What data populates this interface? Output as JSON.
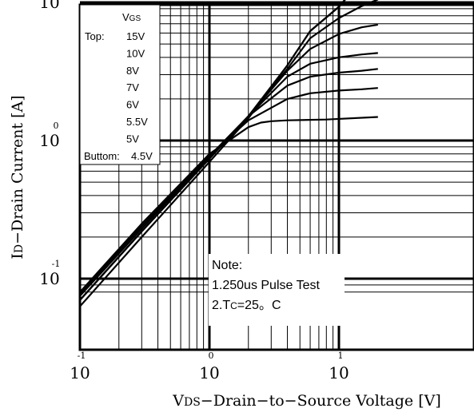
{
  "chart_data": {
    "type": "line",
    "x_scale": "log",
    "y_scale": "log",
    "xlim": [
      0.1,
      20
    ],
    "ylim": [
      0.07,
      20
    ],
    "x_ticks": [
      {
        "value": 0.1,
        "base": "10",
        "exp": "-1"
      },
      {
        "value": 1,
        "base": "10",
        "exp": "0"
      },
      {
        "value": 10,
        "base": "10",
        "exp": "1"
      }
    ],
    "y_ticks": [
      {
        "value": 0.1,
        "base": "10",
        "exp": "-1"
      },
      {
        "value": 1,
        "base": "10",
        "exp": "0"
      },
      {
        "value": 10,
        "base": "10",
        "exp": "1"
      }
    ],
    "xlabel": {
      "prefix": "V",
      "sub": "DS",
      "text": "−Drain−to−Source Voltage [V]"
    },
    "ylabel": {
      "prefix": "I",
      "sub": "D",
      "text": "−Drain Current [A]"
    },
    "grid": true,
    "legend": {
      "header": {
        "prefix": "V",
        "sub": "GS"
      },
      "top_label": "Top:",
      "bottom_label": "Buttom:",
      "entries": [
        "15V",
        "10V",
        "8V",
        "7V",
        "6V",
        "5.5V",
        "5V",
        "4.5V"
      ],
      "placement": "top-left"
    },
    "note": {
      "title": "Note:",
      "line1": "1.250us Pulse Test",
      "line2_prefix": "2.T",
      "line2_sub": "C",
      "line2_suffix": "=25。C"
    },
    "series": [
      {
        "name": "15V",
        "x": [
          0.1,
          0.3,
          1,
          2,
          4,
          6,
          10,
          15,
          20
        ],
        "y": [
          0.07,
          0.22,
          0.74,
          1.5,
          3.5,
          6.2,
          9.3,
          14.5,
          20
        ]
      },
      {
        "name": "10V",
        "x": [
          0.1,
          0.3,
          1,
          2,
          4,
          6,
          10,
          15,
          20
        ],
        "y": [
          0.07,
          0.22,
          0.74,
          1.5,
          3.3,
          5.5,
          7.7,
          9.4,
          10.5
        ]
      },
      {
        "name": "8V",
        "x": [
          0.1,
          0.3,
          1,
          2,
          4,
          6,
          10,
          15,
          20
        ],
        "y": [
          0.07,
          0.22,
          0.74,
          1.5,
          3.2,
          4.6,
          5.9,
          6.6,
          6.9
        ]
      },
      {
        "name": "7V",
        "x": [
          0.1,
          0.3,
          1,
          2,
          4,
          6,
          10,
          15,
          20
        ],
        "y": [
          0.07,
          0.22,
          0.74,
          1.5,
          2.9,
          3.6,
          4.0,
          4.2,
          4.3
        ]
      },
      {
        "name": "6V",
        "x": [
          0.1,
          0.3,
          1,
          2,
          4,
          6,
          10,
          15,
          20
        ],
        "y": [
          0.075,
          0.23,
          0.77,
          1.5,
          2.5,
          2.9,
          3.1,
          3.2,
          3.3
        ]
      },
      {
        "name": "5.5V",
        "x": [
          0.1,
          0.3,
          1,
          2,
          4,
          6,
          10,
          15,
          20
        ],
        "y": [
          0.078,
          0.24,
          0.78,
          1.4,
          2.0,
          2.2,
          2.3,
          2.35,
          2.4
        ]
      },
      {
        "name": "5V",
        "x": [
          0.1,
          0.3,
          1,
          2,
          2.5,
          3,
          4,
          8,
          20
        ],
        "y": [
          0.08,
          0.25,
          0.8,
          1.25,
          1.35,
          1.38,
          1.4,
          1.42,
          1.48
        ]
      },
      {
        "name": "4.5V",
        "x": [
          0.1,
          0.3,
          1,
          2,
          4,
          6,
          10,
          15,
          20
        ],
        "y": [
          0.063,
          0.2,
          0.7,
          1.45,
          3.5,
          6.2,
          9.3,
          14.5,
          20
        ]
      }
    ]
  }
}
